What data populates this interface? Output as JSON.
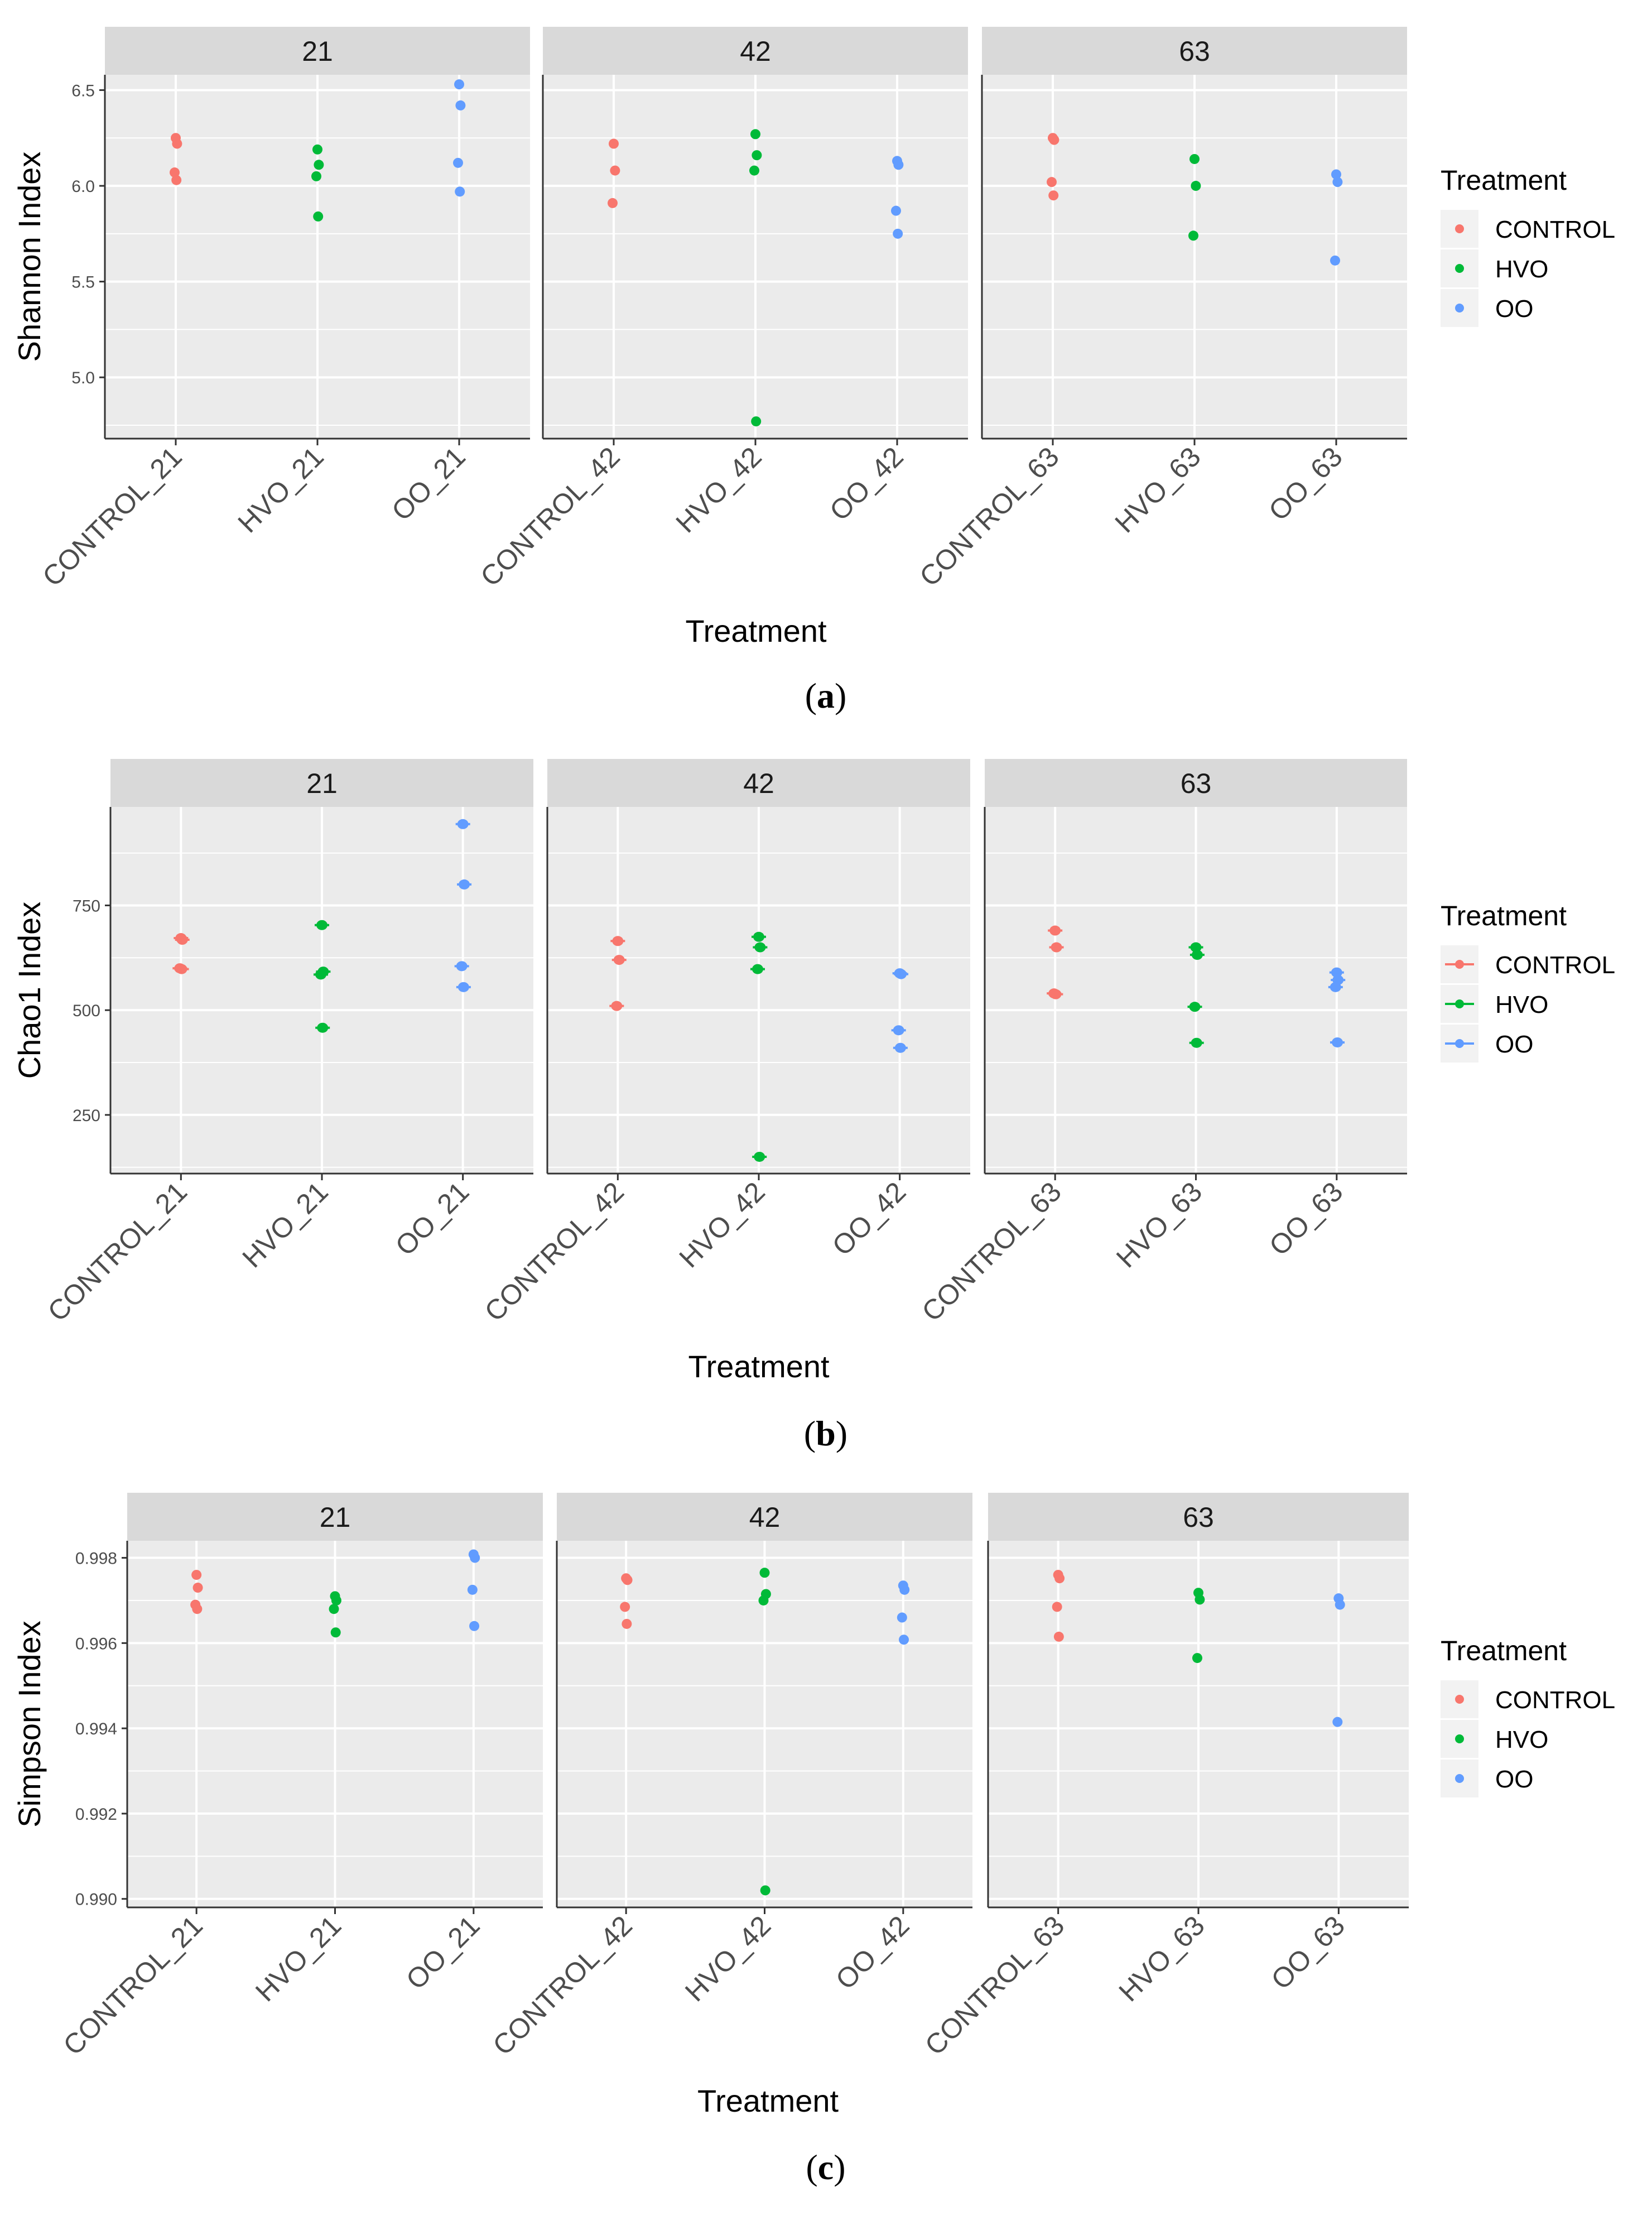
{
  "chart_data": [
    {
      "type": "scatter",
      "caption_letter": "a",
      "ylabel": "Shannon Index",
      "xlabel": "Treatment",
      "ylim": [
        4.68,
        6.58
      ],
      "yticks": [
        5.0,
        5.5,
        6.0,
        6.5
      ],
      "ytick_labels": [
        "5.0",
        "5.5",
        "6.0",
        "6.5"
      ],
      "grid": true,
      "legend": {
        "title": "Treatment",
        "position": "right",
        "style": "points",
        "entries": [
          "CONTROL",
          "HVO",
          "OO"
        ]
      },
      "facets": [
        {
          "label": "21",
          "groups": [
            {
              "name": "CONTROL_21",
              "series": "CONTROL",
              "values": [
                6.25,
                6.22,
                6.07,
                6.03
              ]
            },
            {
              "name": "HVO_21",
              "series": "HVO",
              "values": [
                6.19,
                6.11,
                6.05,
                5.84
              ]
            },
            {
              "name": "OO_21",
              "series": "OO",
              "values": [
                6.53,
                6.42,
                6.12,
                5.97
              ]
            }
          ]
        },
        {
          "label": "42",
          "groups": [
            {
              "name": "CONTROL_42",
              "series": "CONTROL",
              "values": [
                6.22,
                6.08,
                5.91
              ]
            },
            {
              "name": "HVO_42",
              "series": "HVO",
              "values": [
                6.27,
                6.16,
                6.08,
                4.77
              ]
            },
            {
              "name": "OO_42",
              "series": "OO",
              "values": [
                6.13,
                6.11,
                5.87,
                5.75
              ]
            }
          ]
        },
        {
          "label": "63",
          "groups": [
            {
              "name": "CONTROL_63",
              "series": "CONTROL",
              "values": [
                6.25,
                6.24,
                6.02,
                5.95
              ]
            },
            {
              "name": "HVO_63",
              "series": "HVO",
              "values": [
                6.14,
                6.0,
                5.74
              ]
            },
            {
              "name": "OO_63",
              "series": "OO",
              "values": [
                6.06,
                6.02,
                5.61
              ]
            }
          ]
        }
      ]
    },
    {
      "type": "scatter",
      "caption_letter": "b",
      "ylabel": "Chao1 Index",
      "xlabel": "Treatment",
      "ylim": [
        110,
        985
      ],
      "yticks": [
        250,
        500,
        750
      ],
      "ytick_labels": [
        "250",
        "500",
        "750"
      ],
      "grid": true,
      "legend": {
        "title": "Treatment",
        "position": "right",
        "style": "pointrange",
        "entries": [
          "CONTROL",
          "HVO",
          "OO"
        ]
      },
      "facets": [
        {
          "label": "21",
          "groups": [
            {
              "name": "CONTROL_21",
              "series": "CONTROL",
              "values": [
                672,
                668,
                600,
                598
              ]
            },
            {
              "name": "HVO_21",
              "series": "HVO",
              "values": [
                703,
                592,
                585,
                458
              ]
            },
            {
              "name": "OO_21",
              "series": "OO",
              "values": [
                944,
                800,
                605,
                555
              ]
            }
          ]
        },
        {
          "label": "42",
          "groups": [
            {
              "name": "CONTROL_42",
              "series": "CONTROL",
              "values": [
                665,
                620,
                510
              ]
            },
            {
              "name": "HVO_42",
              "series": "HVO",
              "values": [
                675,
                650,
                598,
                150
              ]
            },
            {
              "name": "OO_42",
              "series": "OO",
              "values": [
                588,
                586,
                452,
                410
              ]
            }
          ]
        },
        {
          "label": "63",
          "groups": [
            {
              "name": "CONTROL_63",
              "series": "CONTROL",
              "values": [
                690,
                650,
                540,
                538
              ]
            },
            {
              "name": "HVO_63",
              "series": "HVO",
              "values": [
                650,
                632,
                508,
                422
              ]
            },
            {
              "name": "OO_63",
              "series": "OO",
              "values": [
                590,
                572,
                555,
                423
              ]
            }
          ]
        }
      ]
    },
    {
      "type": "scatter",
      "caption_letter": "c",
      "ylabel": "Simpson Index",
      "xlabel": "Treatment",
      "ylim": [
        0.9898,
        0.9984
      ],
      "yticks": [
        0.99,
        0.992,
        0.994,
        0.996,
        0.998
      ],
      "ytick_labels": [
        "0.990",
        "0.992",
        "0.994",
        "0.996",
        "0.998"
      ],
      "grid": true,
      "legend": {
        "title": "Treatment",
        "position": "right",
        "style": "points",
        "entries": [
          "CONTROL",
          "HVO",
          "OO"
        ]
      },
      "facets": [
        {
          "label": "21",
          "groups": [
            {
              "name": "CONTROL_21",
              "series": "CONTROL",
              "values": [
                0.9976,
                0.9973,
                0.9969,
                0.9968
              ]
            },
            {
              "name": "HVO_21",
              "series": "HVO",
              "values": [
                0.9971,
                0.997,
                0.9968,
                0.99625
              ]
            },
            {
              "name": "OO_21",
              "series": "OO",
              "values": [
                0.99808,
                0.998,
                0.99725,
                0.9964
              ]
            }
          ]
        },
        {
          "label": "42",
          "groups": [
            {
              "name": "CONTROL_42",
              "series": "CONTROL",
              "values": [
                0.99752,
                0.99748,
                0.99685,
                0.99645
              ]
            },
            {
              "name": "HVO_42",
              "series": "HVO",
              "values": [
                0.99765,
                0.99715,
                0.997,
                0.9902
              ]
            },
            {
              "name": "OO_42",
              "series": "OO",
              "values": [
                0.99735,
                0.99725,
                0.9966,
                0.99608
              ]
            }
          ]
        },
        {
          "label": "63",
          "groups": [
            {
              "name": "CONTROL_63",
              "series": "CONTROL",
              "values": [
                0.9976,
                0.99752,
                0.99685,
                0.99615
              ]
            },
            {
              "name": "HVO_63",
              "series": "HVO",
              "values": [
                0.99718,
                0.99702,
                0.99565
              ]
            },
            {
              "name": "OO_63",
              "series": "OO",
              "values": [
                0.99705,
                0.9969,
                0.99415
              ]
            }
          ]
        }
      ]
    }
  ],
  "colors": {
    "CONTROL": "#F8766D",
    "HVO": "#00BA38",
    "OO": "#619CFF",
    "panel_bg": "#EBEBEB",
    "strip_bg": "#D9D9D9",
    "grid": "#FFFFFF"
  }
}
